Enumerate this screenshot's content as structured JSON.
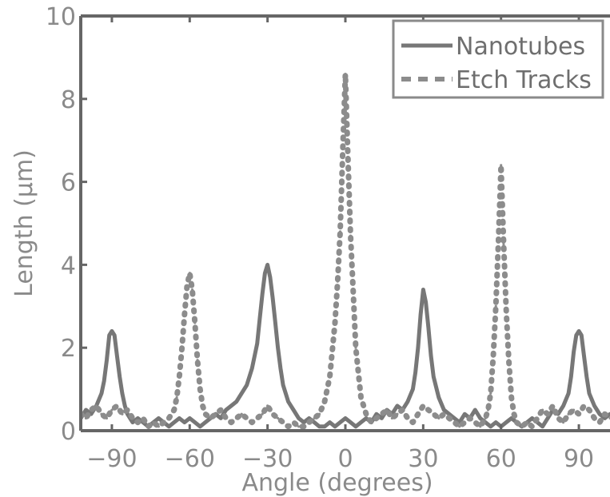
{
  "chart_data": {
    "type": "line",
    "title": "",
    "xlabel": "Angle (degrees)",
    "ylabel": "Length (µm)",
    "xlim": [
      -102,
      102
    ],
    "ylim": [
      0,
      10
    ],
    "x_ticks": [
      -90,
      -60,
      -30,
      0,
      30,
      60,
      90
    ],
    "x_tick_labels": [
      "−90",
      "−60",
      "−30",
      "0",
      "30",
      "60",
      "90"
    ],
    "y_ticks": [
      0,
      2,
      4,
      6,
      8,
      10
    ],
    "y_tick_labels": [
      "0",
      "2",
      "4",
      "6",
      "8",
      "10"
    ],
    "grid": false,
    "legend_position": "top-right",
    "colors": {
      "nanotubes": "#777777",
      "etch": "#8c8c8c",
      "axes": "#666666"
    },
    "series": [
      {
        "name": "Nanotubes",
        "style": "solid",
        "x": [
          -102,
          -100,
          -98,
          -96,
          -94,
          -93,
          -92,
          -91,
          -90,
          -89,
          -88,
          -87,
          -86,
          -85,
          -84,
          -82,
          -80,
          -78,
          -76,
          -74,
          -72,
          -70,
          -68,
          -66,
          -64,
          -62,
          -60,
          -58,
          -56,
          -54,
          -52,
          -50,
          -48,
          -46,
          -44,
          -42,
          -40,
          -38,
          -36,
          -34,
          -33,
          -32,
          -31,
          -30,
          -29,
          -28,
          -27,
          -26,
          -25,
          -24,
          -22,
          -20,
          -18,
          -16,
          -14,
          -12,
          -10,
          -8,
          -6,
          -4,
          -2,
          0,
          2,
          4,
          6,
          8,
          10,
          12,
          14,
          16,
          18,
          20,
          22,
          24,
          26,
          27,
          28,
          29,
          30,
          31,
          32,
          33,
          34,
          36,
          38,
          40,
          42,
          44,
          46,
          48,
          50,
          52,
          54,
          56,
          58,
          60,
          62,
          64,
          66,
          68,
          70,
          72,
          74,
          76,
          78,
          80,
          82,
          84,
          86,
          87,
          88,
          89,
          90,
          91,
          92,
          93,
          94,
          96,
          98,
          100,
          102
        ],
        "values": [
          0.3,
          0.5,
          0.4,
          0.6,
          0.9,
          1.2,
          1.7,
          2.3,
          2.4,
          2.3,
          1.8,
          1.3,
          0.9,
          0.6,
          0.4,
          0.2,
          0.3,
          0.2,
          0.1,
          0.2,
          0.3,
          0.2,
          0.1,
          0.2,
          0.3,
          0.2,
          0.3,
          0.2,
          0.1,
          0.2,
          0.3,
          0.4,
          0.3,
          0.5,
          0.6,
          0.7,
          0.9,
          1.1,
          1.5,
          2.1,
          2.7,
          3.3,
          3.8,
          4.0,
          3.7,
          3.2,
          2.6,
          2.0,
          1.5,
          1.1,
          0.7,
          0.5,
          0.3,
          0.2,
          0.3,
          0.2,
          0.1,
          0.1,
          0.2,
          0.1,
          0.2,
          0.3,
          0.2,
          0.1,
          0.2,
          0.3,
          0.2,
          0.4,
          0.3,
          0.5,
          0.4,
          0.6,
          0.5,
          0.7,
          1.0,
          1.4,
          2.0,
          2.8,
          3.4,
          3.1,
          2.5,
          1.8,
          1.3,
          0.8,
          0.5,
          0.4,
          0.3,
          0.2,
          0.4,
          0.3,
          0.5,
          0.3,
          0.2,
          0.1,
          0.2,
          0.1,
          0.2,
          0.3,
          0.2,
          0.1,
          0.2,
          0.3,
          0.2,
          0.1,
          0.3,
          0.5,
          0.4,
          0.6,
          0.9,
          1.3,
          1.9,
          2.3,
          2.4,
          2.3,
          1.8,
          1.3,
          0.9,
          0.6,
          0.4,
          0.3,
          0.4
        ]
      },
      {
        "name": "Etch Tracks",
        "style": "dashed",
        "x": [
          -102,
          -100,
          -98,
          -96,
          -94,
          -92,
          -90,
          -88,
          -86,
          -84,
          -82,
          -80,
          -78,
          -76,
          -74,
          -72,
          -70,
          -68,
          -66,
          -65,
          -64,
          -63,
          -62,
          -61,
          -60,
          -59,
          -58,
          -57,
          -56,
          -55,
          -54,
          -52,
          -50,
          -48,
          -46,
          -44,
          -42,
          -40,
          -38,
          -36,
          -34,
          -32,
          -30,
          -28,
          -26,
          -24,
          -22,
          -20,
          -18,
          -16,
          -14,
          -12,
          -10,
          -8,
          -6,
          -4,
          -3,
          -2,
          -1,
          0,
          1,
          2,
          3,
          4,
          6,
          8,
          10,
          12,
          14,
          16,
          18,
          20,
          22,
          24,
          26,
          28,
          30,
          32,
          34,
          36,
          38,
          40,
          42,
          44,
          46,
          48,
          50,
          52,
          54,
          55,
          56,
          57,
          58,
          59,
          60,
          61,
          62,
          63,
          64,
          65,
          66,
          68,
          70,
          72,
          74,
          76,
          78,
          80,
          82,
          84,
          86,
          88,
          90,
          92,
          94,
          96,
          98,
          100,
          102
        ],
        "values": [
          0.4,
          0.3,
          0.5,
          0.6,
          0.4,
          0.3,
          0.5,
          0.6,
          0.4,
          0.5,
          0.3,
          0.2,
          0.3,
          0.1,
          0.2,
          0.1,
          0.2,
          0.3,
          0.5,
          0.8,
          1.3,
          2.0,
          2.8,
          3.5,
          3.8,
          3.4,
          2.6,
          1.7,
          1.0,
          0.6,
          0.4,
          0.3,
          0.4,
          0.5,
          0.3,
          0.2,
          0.3,
          0.4,
          0.3,
          0.2,
          0.3,
          0.4,
          0.6,
          0.4,
          0.3,
          0.2,
          0.1,
          0.2,
          0.1,
          0.1,
          0.2,
          0.3,
          0.4,
          0.7,
          1.3,
          2.6,
          3.6,
          4.8,
          6.8,
          8.6,
          6.6,
          4.7,
          3.4,
          2.0,
          0.8,
          0.4,
          0.2,
          0.3,
          0.4,
          0.5,
          0.3,
          0.4,
          0.5,
          0.3,
          0.2,
          0.4,
          0.6,
          0.5,
          0.4,
          0.3,
          0.4,
          0.3,
          0.2,
          0.1,
          0.2,
          0.3,
          0.2,
          0.1,
          0.3,
          0.5,
          0.9,
          1.8,
          3.0,
          4.6,
          6.4,
          4.5,
          2.9,
          1.7,
          0.8,
          0.4,
          0.2,
          0.1,
          0.2,
          0.1,
          0.3,
          0.5,
          0.4,
          0.6,
          0.3,
          0.2,
          0.4,
          0.5,
          0.4,
          0.6,
          0.5,
          0.3,
          0.2,
          0.4,
          0.3
        ]
      }
    ]
  }
}
